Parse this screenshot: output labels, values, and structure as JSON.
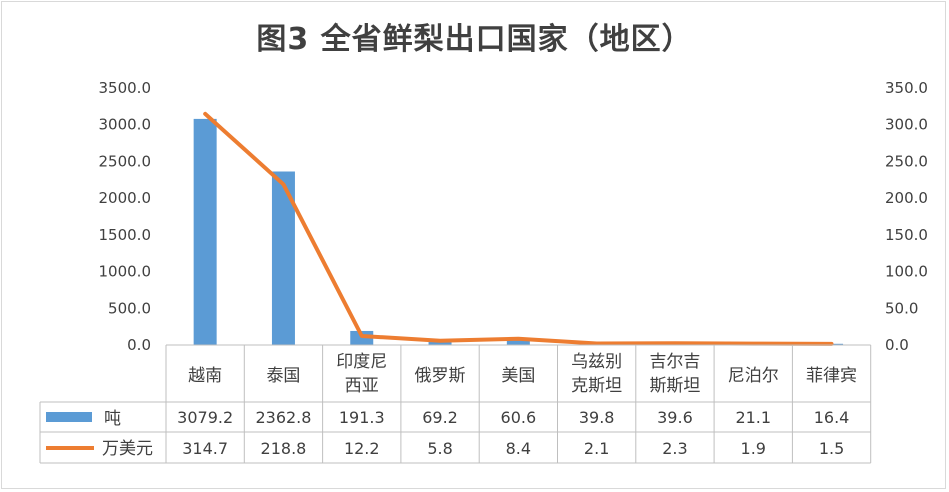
{
  "chart_data": {
    "type": "bar",
    "title": "图3 全省鲜梨出口国家（地区）",
    "categories": [
      [
        "越南"
      ],
      [
        "泰国"
      ],
      [
        "印度尼",
        "西亚"
      ],
      [
        "俄罗斯"
      ],
      [
        "美国"
      ],
      [
        "乌兹别",
        "克斯坦"
      ],
      [
        "吉尔吉",
        "斯斯坦"
      ],
      [
        "尼泊尔"
      ],
      [
        "菲律宾"
      ]
    ],
    "series": [
      {
        "name": "吨",
        "type": "bar",
        "axis": "left",
        "color": "#5b9bd5",
        "values": [
          3079.2,
          2362.8,
          191.3,
          69.2,
          60.6,
          39.8,
          39.6,
          21.1,
          16.4
        ],
        "labels": [
          "3079.2",
          "2362.8",
          "191.3",
          "69.2",
          "60.6",
          "39.8",
          "39.6",
          "21.1",
          "16.4"
        ]
      },
      {
        "name": "万美元",
        "type": "line",
        "axis": "right",
        "color": "#ed7d31",
        "values": [
          314.7,
          218.8,
          12.2,
          5.8,
          8.4,
          2.1,
          2.3,
          1.9,
          1.5
        ],
        "labels": [
          "314.7",
          "218.8",
          "12.2",
          "5.8",
          "8.4",
          "2.1",
          "2.3",
          "1.9",
          "1.5"
        ]
      }
    ],
    "y_left": {
      "min": 0,
      "max": 3500,
      "ticks": [
        "0.0",
        "500.0",
        "1000.0",
        "1500.0",
        "2000.0",
        "2500.0",
        "3000.0",
        "3500.0"
      ]
    },
    "y_right": {
      "min": 0,
      "max": 350,
      "ticks": [
        "0.0",
        "50.0",
        "100.0",
        "150.0",
        "200.0",
        "250.0",
        "300.0",
        "350.0"
      ]
    },
    "grid": false,
    "legend": "data-table"
  }
}
